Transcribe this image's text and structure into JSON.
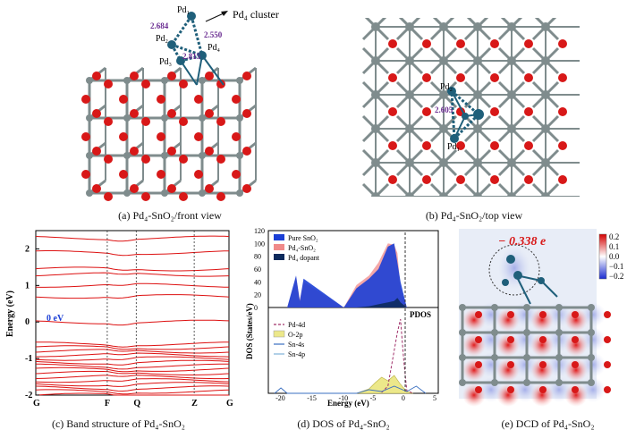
{
  "panel_a": {
    "caption": "(a) Pd₄-SnO₂/front view",
    "cluster_label": "Pd₄ cluster",
    "atoms": [
      "Pd₁",
      "Pd₂",
      "Pd₃",
      "Pd₄"
    ],
    "bond_lengths": [
      "2.684",
      "2.550",
      "2.815"
    ],
    "colors": {
      "sn": "#7f8c8d",
      "o": "#d81818",
      "pd": "#1f5f7a",
      "bond_label": "#6a2c91"
    }
  },
  "panel_b": {
    "caption": "(b) Pd₄-SnO₂/top view",
    "atoms": [
      "Pd₂",
      "Pd₁"
    ],
    "bond_length": "2.605"
  },
  "panel_e": {
    "caption": "(e) DCD of Pd₄-SnO₂",
    "charge_label": "− 0.338 e",
    "colorbar_ticks": [
      "0.2",
      "0.1",
      "0.0",
      "−0.1",
      "−0.2"
    ]
  },
  "chart_data": [
    {
      "type": "line",
      "caption": "(c) Band structure of Pd₄-SnO₂",
      "ylabel": "Energy (eV)",
      "ylim": [
        -2,
        2.5
      ],
      "yticks": [
        -2,
        -1,
        0,
        1,
        2
      ],
      "kpoints": [
        "G",
        "F",
        "Q",
        "Z",
        "G"
      ],
      "kpoint_positions": [
        0,
        0.37,
        0.52,
        0.82,
        1.0
      ],
      "annotation": "0 eV",
      "bands_at_G": [
        -2.0,
        -1.9,
        -1.8,
        -1.7,
        -1.6,
        -1.5,
        -1.4,
        -1.3,
        -1.2,
        -1.1,
        -1.0,
        -0.9,
        -0.8,
        -0.7,
        -0.6,
        0.0,
        0.7,
        1.0,
        1.3,
        1.45,
        1.9,
        2.3
      ],
      "series_color": "#dd1111"
    },
    {
      "type": "area",
      "caption": "(d) DOS of Pd₄-SnO₂",
      "xlabel": "Energy (eV)",
      "ylabel": "DOS (States/eV)",
      "xlim": [
        -22,
        5
      ],
      "xticks": [
        -20,
        -15,
        -10,
        -5,
        0,
        5
      ],
      "top": {
        "ylim": [
          0,
          120
        ],
        "yticks": [
          0,
          20,
          40,
          60,
          80,
          100,
          120
        ],
        "legend": [
          "Pure SnO₂",
          "Pd₄-SnO₂",
          "Pd₄ dopant"
        ],
        "colors": [
          "#1b3fd6",
          "#f08a8a",
          "#0d2a5c"
        ],
        "x": [
          -19,
          -18.3,
          -17.6,
          -17,
          -16.4,
          -10,
          -8,
          -6,
          -4.5,
          -3,
          -2,
          -1.5,
          -1,
          0
        ],
        "series": [
          {
            "name": "Pure SnO₂",
            "values": [
              0,
              25,
              50,
              10,
              45,
              0,
              30,
              45,
              60,
              95,
              100,
              70,
              40,
              0
            ]
          },
          {
            "name": "Pd₄-SnO₂",
            "values": [
              0,
              22,
              48,
              12,
              40,
              0,
              35,
              50,
              70,
              100,
              98,
              85,
              30,
              0
            ]
          },
          {
            "name": "Pd₄ dopant",
            "values": [
              0,
              0,
              0,
              0,
              0,
              0,
              0,
              2,
              5,
              8,
              10,
              15,
              8,
              0
            ]
          }
        ]
      },
      "bottom": {
        "legend": [
          "Pd-4d",
          "O-2p",
          "Sn-4s",
          "Sn-4p"
        ],
        "colors": [
          "#a0306a",
          "#ece88a",
          "#3a6fc0",
          "#7fb0d8"
        ],
        "label": "PDOS"
      }
    }
  ]
}
